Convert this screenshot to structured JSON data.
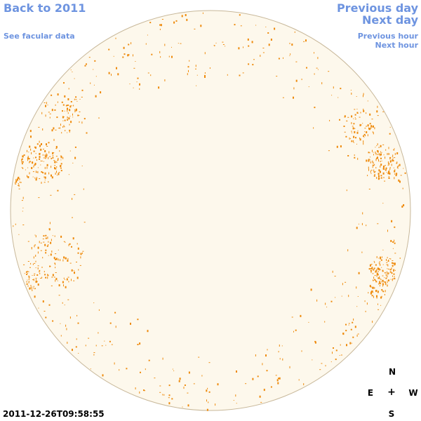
{
  "nav": {
    "back_label": "Back to 2011",
    "facular_label": "See facular data",
    "prev_day_label": "Previous day",
    "next_day_label": "Next day",
    "prev_hour_label": "Previous hour",
    "next_hour_label": "Next hour"
  },
  "compass": {
    "north": "N",
    "south": "S",
    "east": "E",
    "west": "W",
    "center": "+"
  },
  "timestamp": "2011-12-26T09:58:55",
  "colors": {
    "link": "#6e94e0",
    "disk_fill": "#fdf8ec",
    "disk_edge": "#c8b89a",
    "facula": "#ee8a0c"
  }
}
